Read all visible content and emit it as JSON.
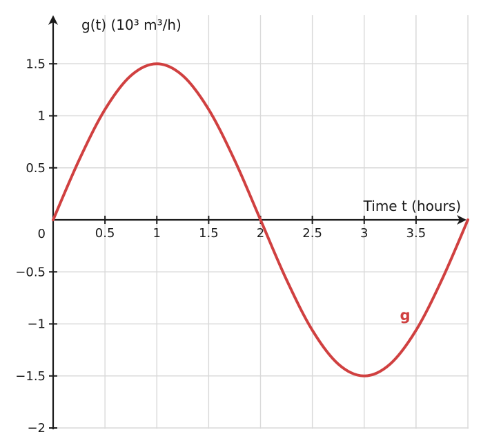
{
  "chart_data": {
    "type": "line",
    "xlabel": "Time t (hours)",
    "ylabel": "g(t) (10³ m³/h)",
    "xlim": [
      0,
      4
    ],
    "ylim": [
      -2,
      1.9
    ],
    "grid": true,
    "x_ticks": [
      {
        "value": 0.5,
        "label": "0.5"
      },
      {
        "value": 1,
        "label": "1"
      },
      {
        "value": 1.5,
        "label": "1.5"
      },
      {
        "value": 2,
        "label": "2"
      },
      {
        "value": 2.5,
        "label": "2.5"
      },
      {
        "value": 3,
        "label": "3"
      },
      {
        "value": 3.5,
        "label": "3.5"
      }
    ],
    "y_ticks": [
      {
        "value": 1.5,
        "label": "1.5"
      },
      {
        "value": 1,
        "label": "1"
      },
      {
        "value": 0.5,
        "label": "0.5"
      },
      {
        "value": -0.5,
        "label": "−0.5"
      },
      {
        "value": -1,
        "label": "−1"
      },
      {
        "value": -1.5,
        "label": "−1.5"
      },
      {
        "value": -2,
        "label": "−2"
      }
    ],
    "origin_label": "0",
    "series": [
      {
        "name": "g",
        "color": "#d04040",
        "x": [
          0,
          0.25,
          0.5,
          0.75,
          1,
          1.25,
          1.5,
          1.75,
          2,
          2.25,
          2.5,
          2.75,
          3,
          3.25,
          3.5,
          3.75,
          4
        ],
        "y": [
          0,
          0.574,
          1.061,
          1.386,
          1.5,
          1.386,
          1.061,
          0.574,
          0,
          -0.574,
          -1.061,
          -1.386,
          -1.5,
          -1.386,
          -1.061,
          -0.574,
          0
        ]
      }
    ]
  }
}
